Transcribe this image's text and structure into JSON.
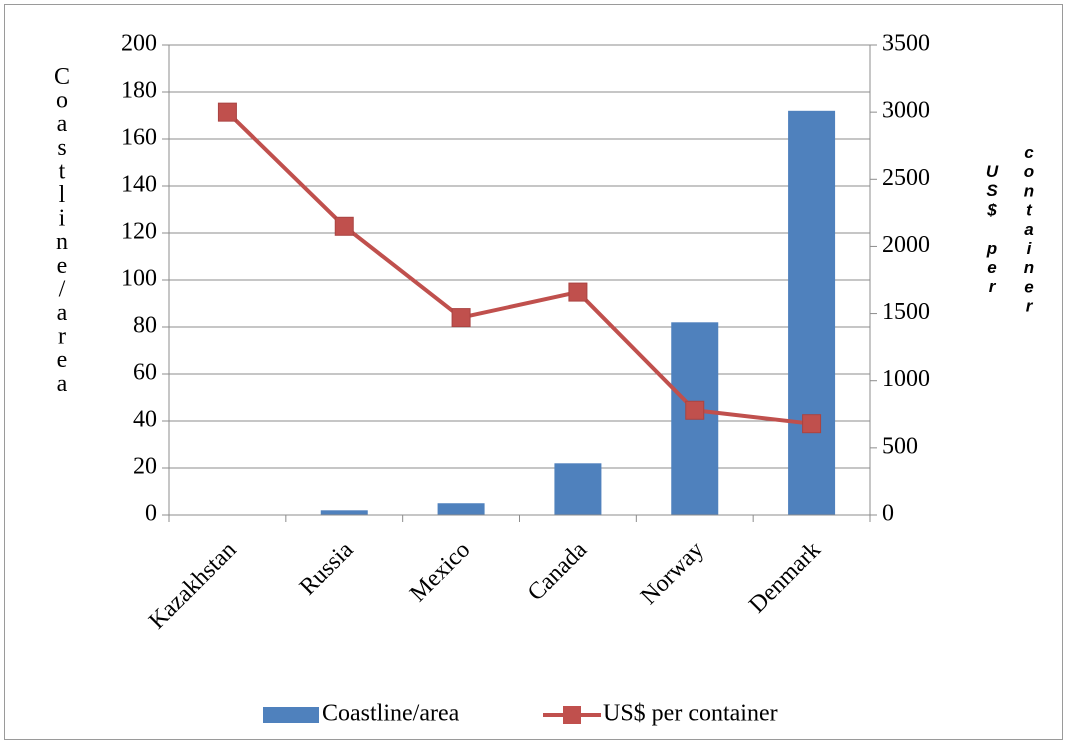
{
  "chart_data": {
    "type": "bar+line",
    "categories": [
      "Kazakhstan",
      "Russia",
      "Mexico",
      "Canada",
      "Norway",
      "Denmark"
    ],
    "series": [
      {
        "name": "Coastline/area",
        "kind": "bar",
        "axis": "left",
        "color": "#4F81BD",
        "values": [
          0,
          2,
          5,
          22,
          82,
          172
        ]
      },
      {
        "name": "US$ per container",
        "kind": "line",
        "axis": "right",
        "color": "#C0504D",
        "marker": "square",
        "values": [
          3000,
          2150,
          1470,
          1660,
          780,
          680
        ]
      }
    ],
    "ylabel": "Coastline/area",
    "y2label_lines": [
      "US$ per",
      "container"
    ],
    "ylim": [
      0,
      200
    ],
    "y2lim": [
      0,
      3500
    ],
    "yticks": [
      0,
      20,
      40,
      60,
      80,
      100,
      120,
      140,
      160,
      180,
      200
    ],
    "y2ticks": [
      0,
      500,
      1000,
      1500,
      2000,
      2500,
      3000,
      3500
    ],
    "grid": "horizontal",
    "legend": "bottom"
  }
}
